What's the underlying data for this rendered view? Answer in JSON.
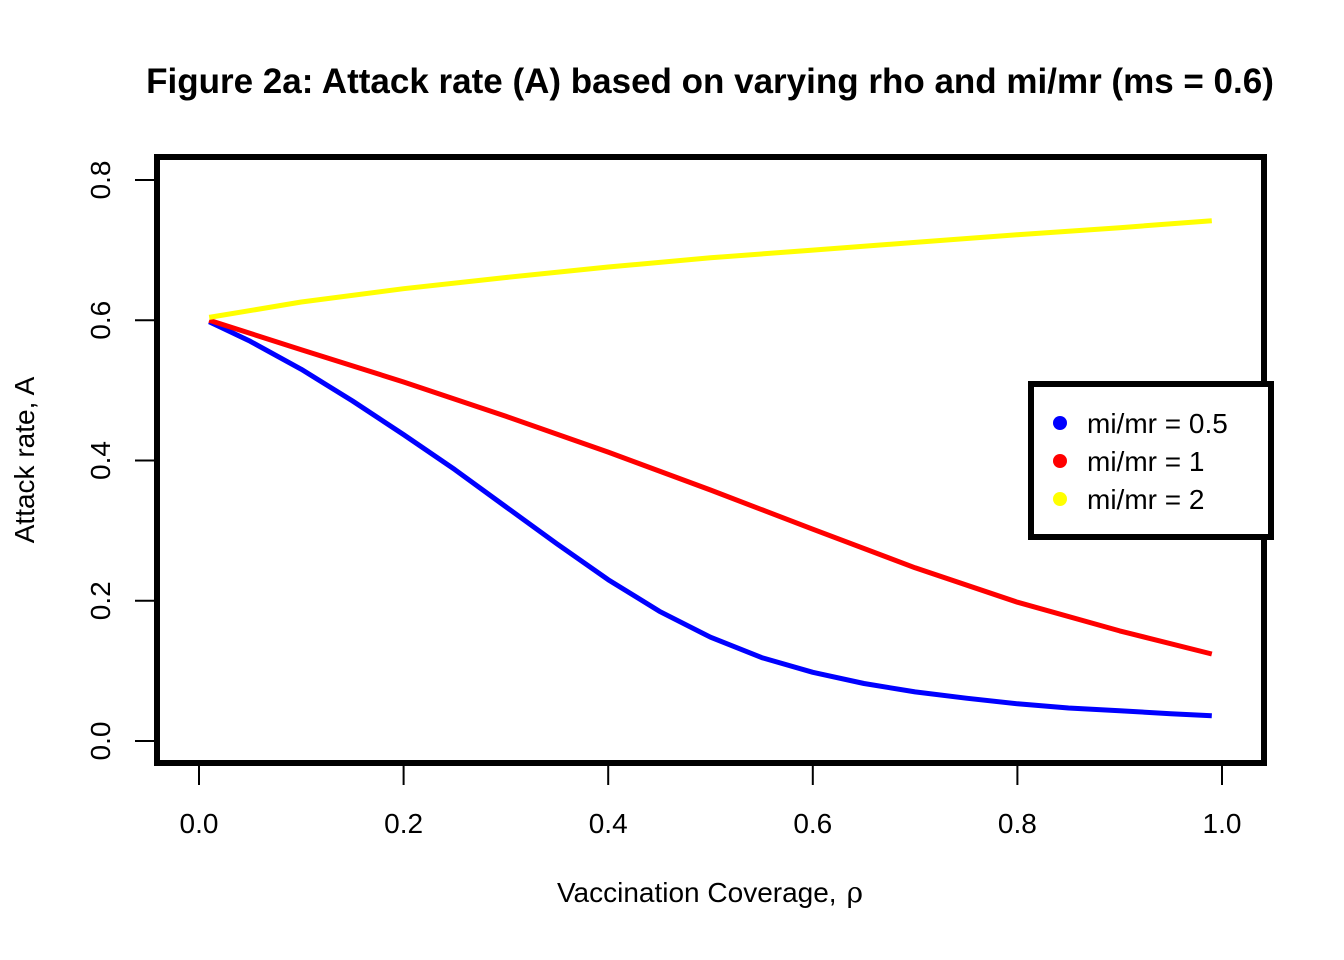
{
  "chart_data": {
    "type": "line",
    "title": "Figure 2a: Attack rate (A) based on varying rho and mi/mr (ms = 0.6)",
    "xlabel_prefix": "Vaccination Coverage,",
    "xlabel_symbol": "ρ",
    "ylabel": "Attack rate, A",
    "xlim": [
      0.0,
      1.0
    ],
    "ylim": [
      0.0,
      0.8
    ],
    "x_ticks": [
      0.0,
      0.2,
      0.4,
      0.6,
      0.8,
      1.0
    ],
    "x_tick_labels": [
      "0.0",
      "0.2",
      "0.4",
      "0.6",
      "0.8",
      "1.0"
    ],
    "y_ticks": [
      0.0,
      0.2,
      0.4,
      0.6,
      0.8
    ],
    "y_tick_labels": [
      "0.0",
      "0.2",
      "0.4",
      "0.6",
      "0.8"
    ],
    "grid": false,
    "legend_position": "right",
    "series": [
      {
        "name": "mi/mr = 0.5",
        "color": "#0000ff",
        "x": [
          0.01,
          0.05,
          0.1,
          0.15,
          0.2,
          0.25,
          0.3,
          0.35,
          0.4,
          0.45,
          0.5,
          0.55,
          0.6,
          0.65,
          0.7,
          0.75,
          0.8,
          0.85,
          0.9,
          0.95,
          0.99
        ],
        "y": [
          0.598,
          0.57,
          0.53,
          0.485,
          0.437,
          0.387,
          0.334,
          0.281,
          0.23,
          0.185,
          0.148,
          0.119,
          0.098,
          0.082,
          0.07,
          0.061,
          0.053,
          0.047,
          0.043,
          0.039,
          0.036
        ]
      },
      {
        "name": "mi/mr = 1",
        "color": "#ff0000",
        "x": [
          0.01,
          0.1,
          0.2,
          0.3,
          0.4,
          0.5,
          0.6,
          0.7,
          0.8,
          0.9,
          0.99
        ],
        "y": [
          0.6,
          0.558,
          0.512,
          0.463,
          0.412,
          0.358,
          0.302,
          0.247,
          0.198,
          0.157,
          0.124
        ]
      },
      {
        "name": "mi/mr = 2",
        "color": "#ffff00",
        "x": [
          0.01,
          0.1,
          0.2,
          0.3,
          0.4,
          0.5,
          0.6,
          0.7,
          0.8,
          0.9,
          0.99
        ],
        "y": [
          0.604,
          0.626,
          0.645,
          0.661,
          0.676,
          0.689,
          0.7,
          0.711,
          0.722,
          0.732,
          0.742
        ]
      }
    ]
  }
}
